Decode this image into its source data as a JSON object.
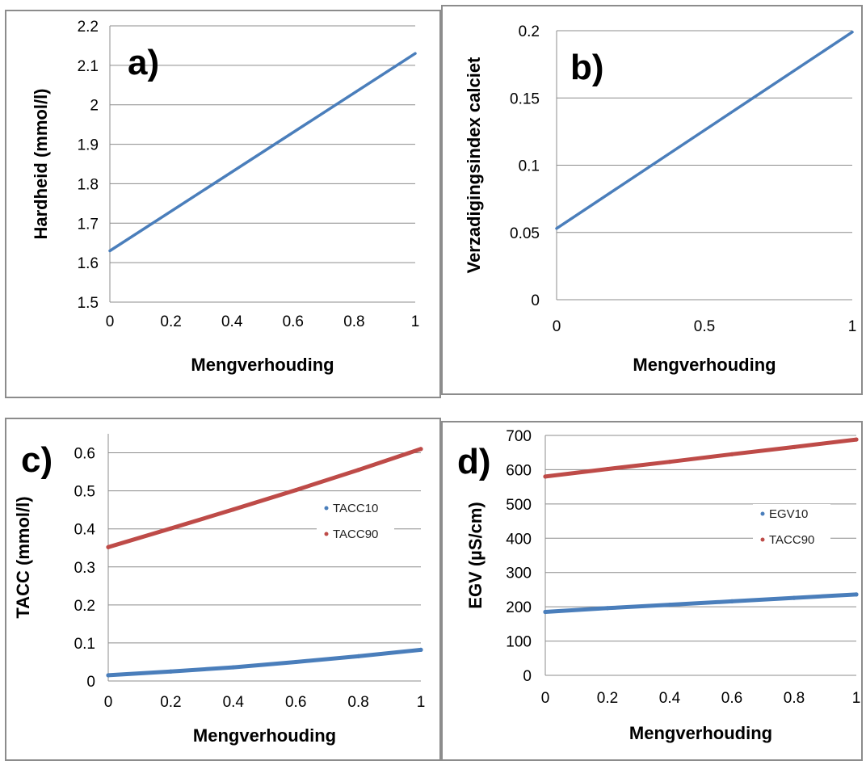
{
  "chart_data": [
    {
      "id": "a",
      "type": "line",
      "panel_label": "a)",
      "xlabel": "Mengverhouding",
      "ylabel": "Hardheid (mmol/l)",
      "xlim": [
        0,
        1
      ],
      "ylim": [
        1.5,
        2.2
      ],
      "xticks": [
        0,
        0.2,
        0.4,
        0.6,
        0.8,
        1
      ],
      "xtick_labels": [
        "0",
        "0.2",
        "0.4",
        "0.6",
        "0.8",
        "1"
      ],
      "yticks": [
        1.5,
        1.6,
        1.7,
        1.8,
        1.9,
        2.0,
        2.1,
        2.2
      ],
      "ytick_labels": [
        "1.5",
        "1.6",
        "1.7",
        "1.8",
        "1.9",
        "2",
        "2.1",
        "2.2"
      ],
      "grid": true,
      "legend": "none",
      "series": [
        {
          "x": [
            0,
            1
          ],
          "y": [
            1.63,
            2.13
          ],
          "color": "#4a7ebb"
        }
      ]
    },
    {
      "id": "b",
      "type": "line",
      "panel_label": "b)",
      "xlabel": "Mengverhouding",
      "ylabel": "Verzadigingsindex calciet",
      "xlim": [
        0,
        1
      ],
      "ylim": [
        0,
        0.2
      ],
      "xticks": [
        0,
        0.5,
        1
      ],
      "xtick_labels": [
        "0",
        "0.5",
        "1"
      ],
      "yticks": [
        0,
        0.05,
        0.1,
        0.15,
        0.2
      ],
      "ytick_labels": [
        "0",
        "0.05",
        "0.1",
        "0.15",
        "0.2"
      ],
      "grid": true,
      "legend": "none",
      "series": [
        {
          "x": [
            0,
            1
          ],
          "y": [
            0.053,
            0.199
          ],
          "color": "#4a7ebb"
        }
      ]
    },
    {
      "id": "c",
      "type": "line",
      "panel_label": "c)",
      "xlabel": "Mengverhouding",
      "ylabel": "TACC (mmol/l)",
      "xlim": [
        0,
        1
      ],
      "ylim": [
        0,
        0.65
      ],
      "xticks": [
        0,
        0.2,
        0.4,
        0.6,
        0.8,
        1
      ],
      "xtick_labels": [
        "0",
        "0.2",
        "0.4",
        "0.6",
        "0.8",
        "1"
      ],
      "yticks": [
        0,
        0.1,
        0.2,
        0.3,
        0.4,
        0.5,
        0.6
      ],
      "ytick_labels": [
        "0",
        "0.1",
        "0.2",
        "0.3",
        "0.4",
        "0.5",
        "0.6"
      ],
      "grid": true,
      "legend": "right",
      "series": [
        {
          "name": "TACC10",
          "x": [
            0,
            0.2,
            0.4,
            0.6,
            0.8,
            1
          ],
          "y": [
            0.015,
            0.025,
            0.036,
            0.05,
            0.065,
            0.082
          ],
          "color": "#4a7ebb"
        },
        {
          "name": "TACC90",
          "x": [
            0,
            0.2,
            0.4,
            0.6,
            0.8,
            1
          ],
          "y": [
            0.352,
            0.401,
            0.451,
            0.502,
            0.555,
            0.61
          ],
          "color": "#be4b48"
        }
      ]
    },
    {
      "id": "d",
      "type": "line",
      "panel_label": "d)",
      "xlabel": "Mengverhouding",
      "ylabel": "EGV (µS/cm)",
      "xlim": [
        0,
        1
      ],
      "ylim": [
        0,
        700
      ],
      "xticks": [
        0,
        0.2,
        0.4,
        0.6,
        0.8,
        1
      ],
      "xtick_labels": [
        "0",
        "0.2",
        "0.4",
        "0.6",
        "0.8",
        "1"
      ],
      "yticks": [
        0,
        100,
        200,
        300,
        400,
        500,
        600,
        700
      ],
      "ytick_labels": [
        "0",
        "100",
        "200",
        "300",
        "400",
        "500",
        "600",
        "700"
      ],
      "grid": true,
      "legend": "right",
      "series": [
        {
          "name": "EGV10",
          "x": [
            0,
            0.2,
            0.4,
            0.6,
            0.8,
            1
          ],
          "y": [
            185,
            196,
            206,
            216,
            226,
            236
          ],
          "color": "#4a7ebb"
        },
        {
          "name": "TACC90",
          "x": [
            0,
            0.2,
            0.4,
            0.6,
            0.8,
            1
          ],
          "y": [
            580,
            602,
            623,
            645,
            666,
            688
          ],
          "color": "#be4b48"
        }
      ]
    }
  ]
}
